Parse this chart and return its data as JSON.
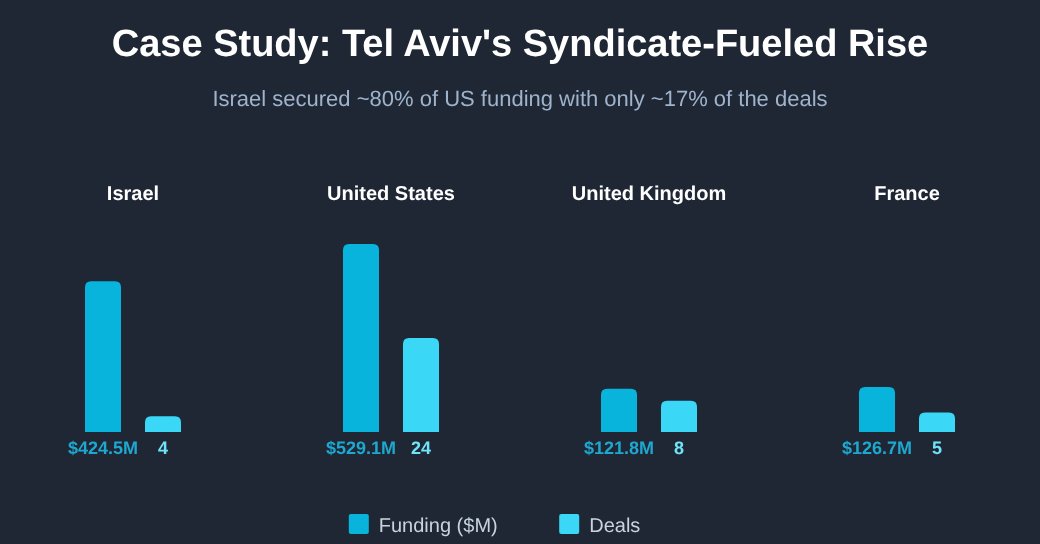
{
  "chart_data": {
    "type": "bar",
    "title": "Case Study: Tel Aviv's Syndicate-Fueled Rise",
    "subtitle": "Israel secured ~80% of US funding with only ~17% of the deals",
    "categories": [
      "Israel",
      "United States",
      "United Kingdom",
      "France"
    ],
    "series": [
      {
        "name": "Funding ($M)",
        "color": "#08b4dc",
        "values": [
          424.5,
          529.1,
          121.8,
          126.7
        ],
        "value_labels": [
          "$424.5M",
          "$529.1M",
          "$121.8M",
          "$126.7M"
        ]
      },
      {
        "name": "Deals",
        "color": "#3ad8f6",
        "axis": "y2",
        "values": [
          4,
          24,
          8,
          5
        ],
        "value_labels": [
          "4",
          "24",
          "8",
          "5"
        ]
      }
    ],
    "tick_labels": "x",
    "grid": false,
    "legend": "bottom"
  }
}
